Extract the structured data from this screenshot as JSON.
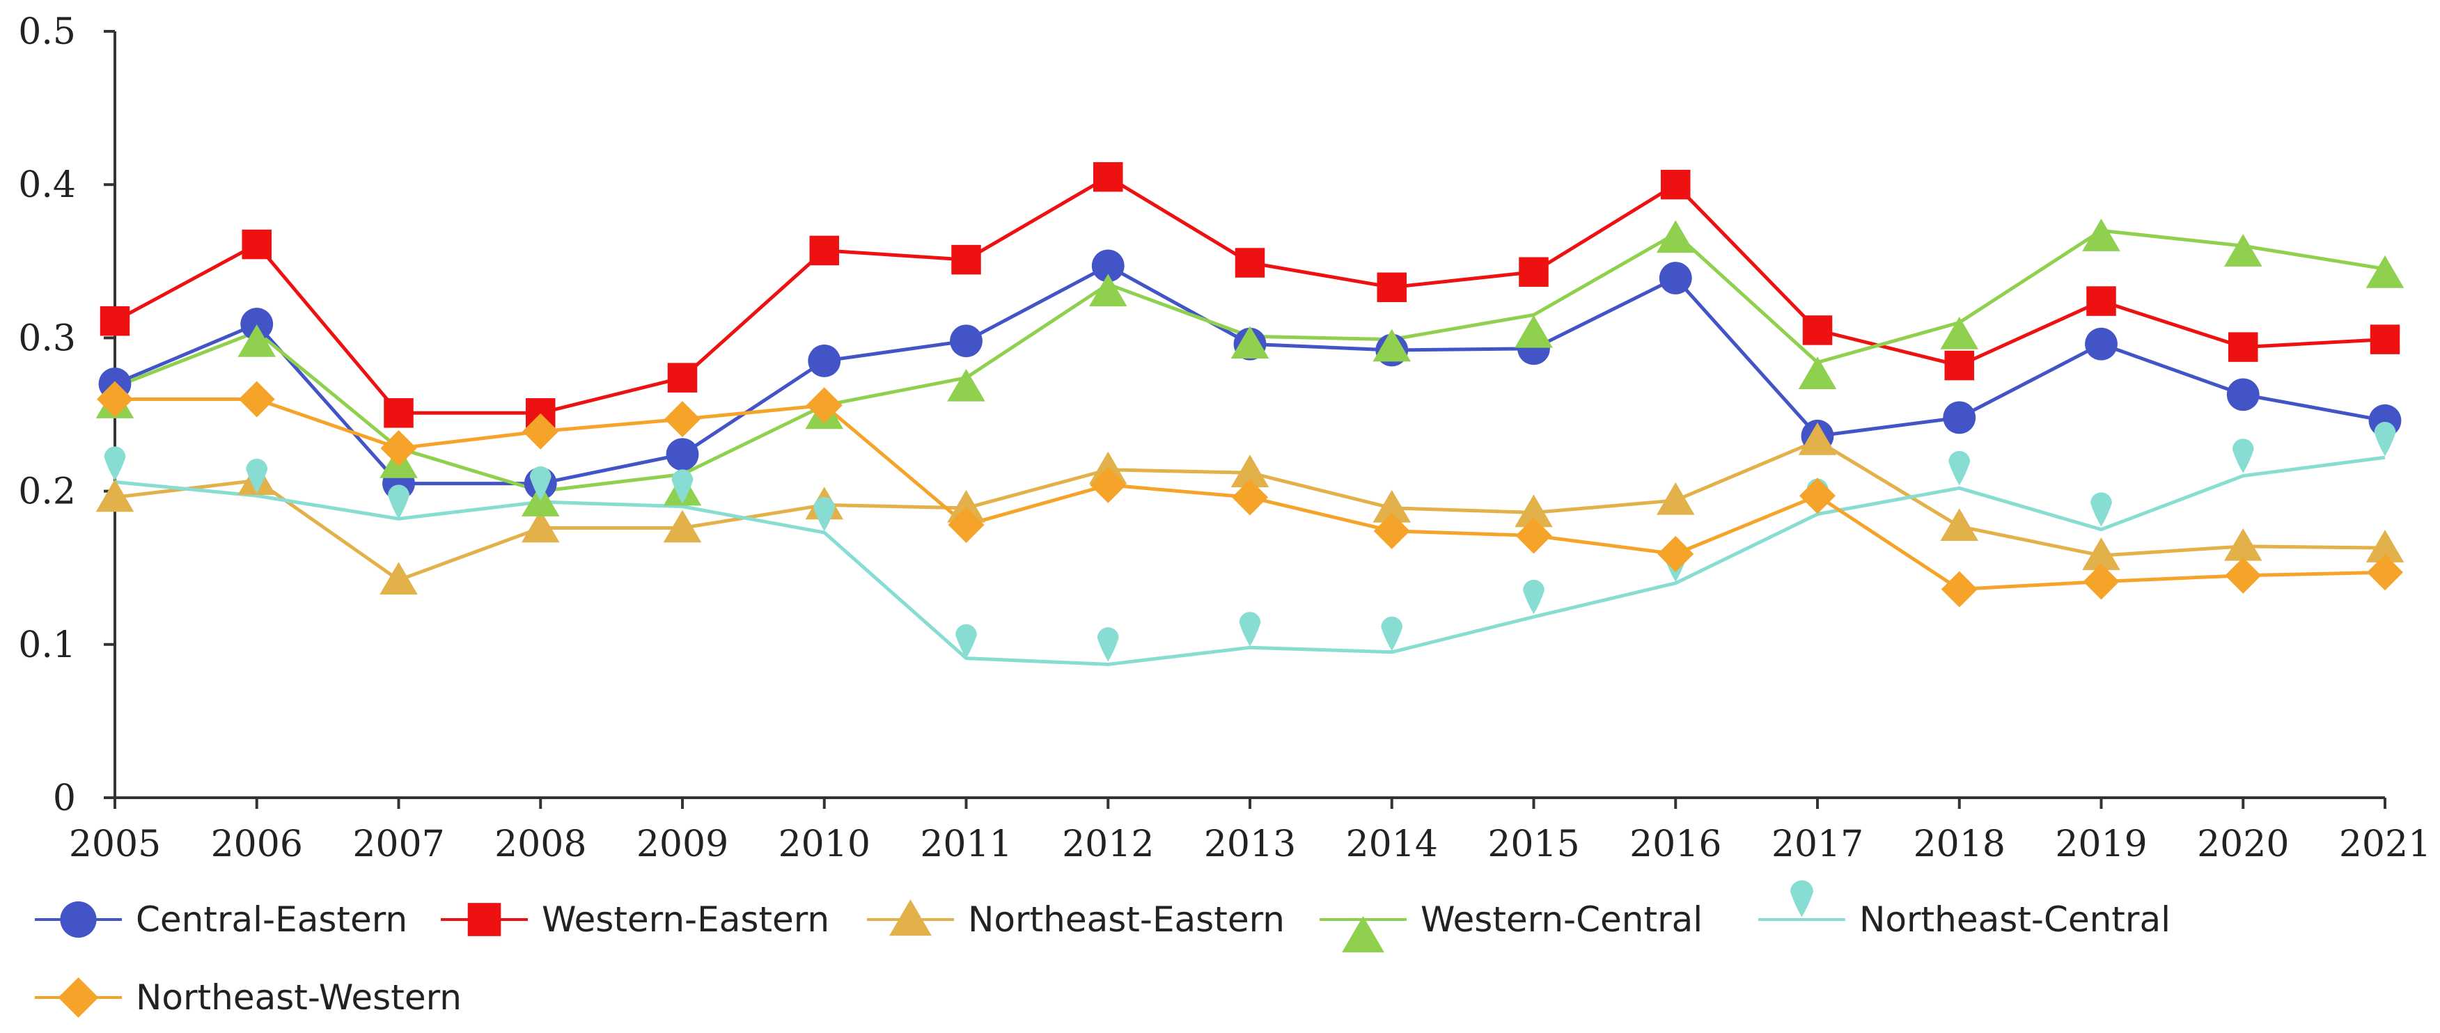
{
  "chart_data": {
    "type": "line",
    "title": "",
    "xlabel": "",
    "ylabel": "",
    "x": [
      "2005",
      "2006",
      "2007",
      "2008",
      "2009",
      "2010",
      "2011",
      "2012",
      "2013",
      "2014",
      "2015",
      "2016",
      "2017",
      "2018",
      "2019",
      "2020",
      "2021"
    ],
    "ylim": [
      0,
      0.5
    ],
    "yticks": [
      "0",
      "0.1",
      "0.2",
      "0.3",
      "0.4",
      "0.5"
    ],
    "grid": false,
    "legend_position": "bottom",
    "series": [
      {
        "name": "Central-Eastern",
        "color": "#4254C6",
        "marker": "circle",
        "line_values": [
          0.27,
          0.309,
          0.205,
          0.205,
          0.224,
          0.285,
          0.298,
          0.347,
          0.296,
          0.292,
          0.293,
          0.339,
          0.236,
          0.248,
          0.296,
          0.263,
          0.246
        ],
        "marker_values": [
          0.27,
          0.309,
          0.205,
          0.205,
          0.224,
          0.285,
          0.298,
          0.347,
          0.296,
          0.292,
          0.293,
          0.339,
          0.236,
          0.248,
          0.296,
          0.263,
          0.246
        ]
      },
      {
        "name": "Western-Eastern",
        "color": "#EE1111",
        "marker": "square",
        "line_values": [
          0.311,
          0.361,
          0.251,
          0.251,
          0.274,
          0.357,
          0.351,
          0.405,
          0.349,
          0.333,
          0.343,
          0.4,
          0.305,
          0.282,
          0.324,
          0.294,
          0.299
        ],
        "marker_values": [
          0.311,
          0.361,
          0.251,
          0.251,
          0.274,
          0.357,
          0.351,
          0.405,
          0.349,
          0.333,
          0.343,
          0.4,
          0.305,
          0.282,
          0.324,
          0.294,
          0.299
        ]
      },
      {
        "name": "Northeast-Eastern",
        "color": "#E2B14A",
        "marker": "triangle",
        "line_values": [
          0.196,
          0.207,
          0.142,
          0.176,
          0.176,
          0.191,
          0.189,
          0.214,
          0.212,
          0.189,
          0.186,
          0.194,
          0.233,
          0.177,
          0.158,
          0.164,
          0.163
        ],
        "marker_values": [
          0.196,
          0.207,
          0.142,
          0.176,
          0.176,
          0.191,
          0.189,
          0.214,
          0.212,
          0.189,
          0.186,
          0.194,
          0.233,
          0.177,
          0.158,
          0.164,
          0.163
        ]
      },
      {
        "name": "Western-Central",
        "color": "#8FD14F",
        "marker": "triangle-down",
        "line_values": [
          0.268,
          0.304,
          0.228,
          0.2,
          0.211,
          0.256,
          0.274,
          0.335,
          0.301,
          0.299,
          0.315,
          0.368,
          0.284,
          0.31,
          0.37,
          0.36,
          0.345
        ],
        "marker_values": [
          0.257,
          0.297,
          0.218,
          0.193,
          0.2,
          0.25,
          0.268,
          0.33,
          0.296,
          0.294,
          0.303,
          0.365,
          0.276,
          0.302,
          0.366,
          0.356,
          0.342
        ]
      },
      {
        "name": "Northeast-Central",
        "color": "#88DDD3",
        "marker": "pin",
        "line_values": [
          0.206,
          0.197,
          0.182,
          0.193,
          0.19,
          0.173,
          0.091,
          0.087,
          0.098,
          0.095,
          0.118,
          0.14,
          0.185,
          0.202,
          0.175,
          0.21,
          0.222
        ],
        "marker_values": [
          0.218,
          0.21,
          0.193,
          0.205,
          0.203,
          0.185,
          0.102,
          0.1,
          0.11,
          0.107,
          0.131,
          0.152,
          0.197,
          0.215,
          0.188,
          0.223,
          0.234
        ]
      },
      {
        "name": "Northeast-Western",
        "color": "#F5A329",
        "marker": "diamond",
        "line_values": [
          0.26,
          0.26,
          0.228,
          0.239,
          0.247,
          0.256,
          0.178,
          0.204,
          0.196,
          0.174,
          0.171,
          0.159,
          0.197,
          0.136,
          0.141,
          0.145,
          0.147
        ],
        "marker_values": [
          0.26,
          0.26,
          0.228,
          0.239,
          0.247,
          0.256,
          0.178,
          0.204,
          0.196,
          0.174,
          0.171,
          0.159,
          0.197,
          0.136,
          0.141,
          0.145,
          0.147
        ]
      }
    ]
  }
}
